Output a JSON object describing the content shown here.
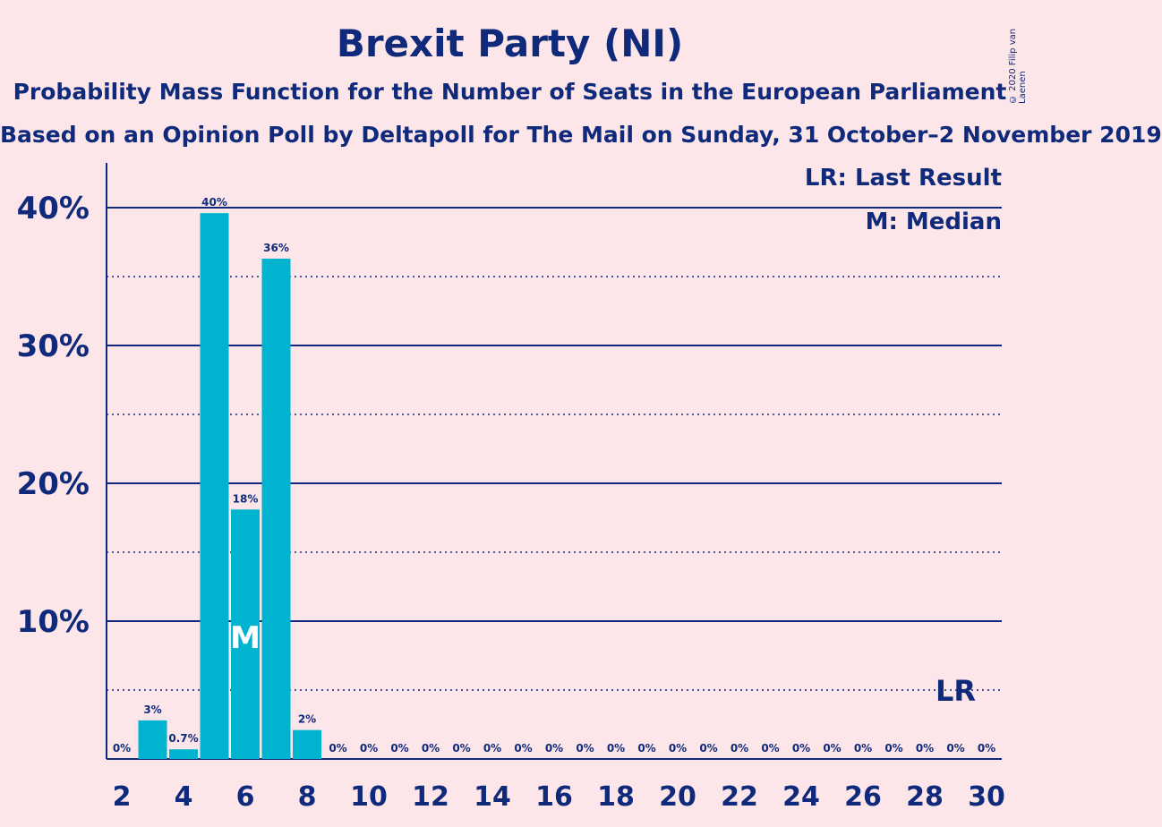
{
  "title": "Brexit Party (NI)",
  "subtitle": "Probability Mass Function for the Number of Seats in the European Parliament",
  "subtitle2": "Based on an Opinion Poll by Deltapoll for The Mail on Sunday, 31 October–2 November 2019",
  "copyright": "© 2020 Filip van Laenen",
  "legend": {
    "last_result": "LR: Last Result",
    "median": "M: Median"
  },
  "colors": {
    "background": "#fde6ea",
    "bar": "#00b4d0",
    "text": "#0f2a7a"
  },
  "chart_data": {
    "type": "bar",
    "x": [
      2,
      3,
      4,
      5,
      6,
      7,
      8,
      9,
      10,
      11,
      12,
      13,
      14,
      15,
      16,
      17,
      18,
      19,
      20,
      21,
      22,
      23,
      24,
      25,
      26,
      27,
      28,
      29,
      30
    ],
    "values": [
      0,
      2.8,
      0.7,
      39.6,
      18.1,
      36.3,
      2.1,
      0,
      0,
      0,
      0,
      0,
      0,
      0,
      0,
      0,
      0,
      0,
      0,
      0,
      0,
      0,
      0,
      0,
      0,
      0,
      0,
      0,
      0
    ],
    "data_labels": [
      "0%",
      "3%",
      "0.7%",
      "40%",
      "18%",
      "36%",
      "2%",
      "0%",
      "0%",
      "0%",
      "0%",
      "0%",
      "0%",
      "0%",
      "0%",
      "0%",
      "0%",
      "0%",
      "0%",
      "0%",
      "0%",
      "0%",
      "0%",
      "0%",
      "0%",
      "0%",
      "0%",
      "0%",
      "0%"
    ],
    "xticks": [
      2,
      4,
      6,
      8,
      10,
      12,
      14,
      16,
      18,
      20,
      22,
      24,
      26,
      28,
      30
    ],
    "yticks": [
      10,
      20,
      30,
      40
    ],
    "ytick_labels": [
      "10%",
      "20%",
      "30%",
      "40%"
    ],
    "ylim": [
      0,
      43
    ],
    "median_seat": 6,
    "median_marker": "M",
    "last_result_seat": 29,
    "last_result_marker": "LR",
    "grid": "solid at 10% steps, dotted at 5% steps"
  }
}
